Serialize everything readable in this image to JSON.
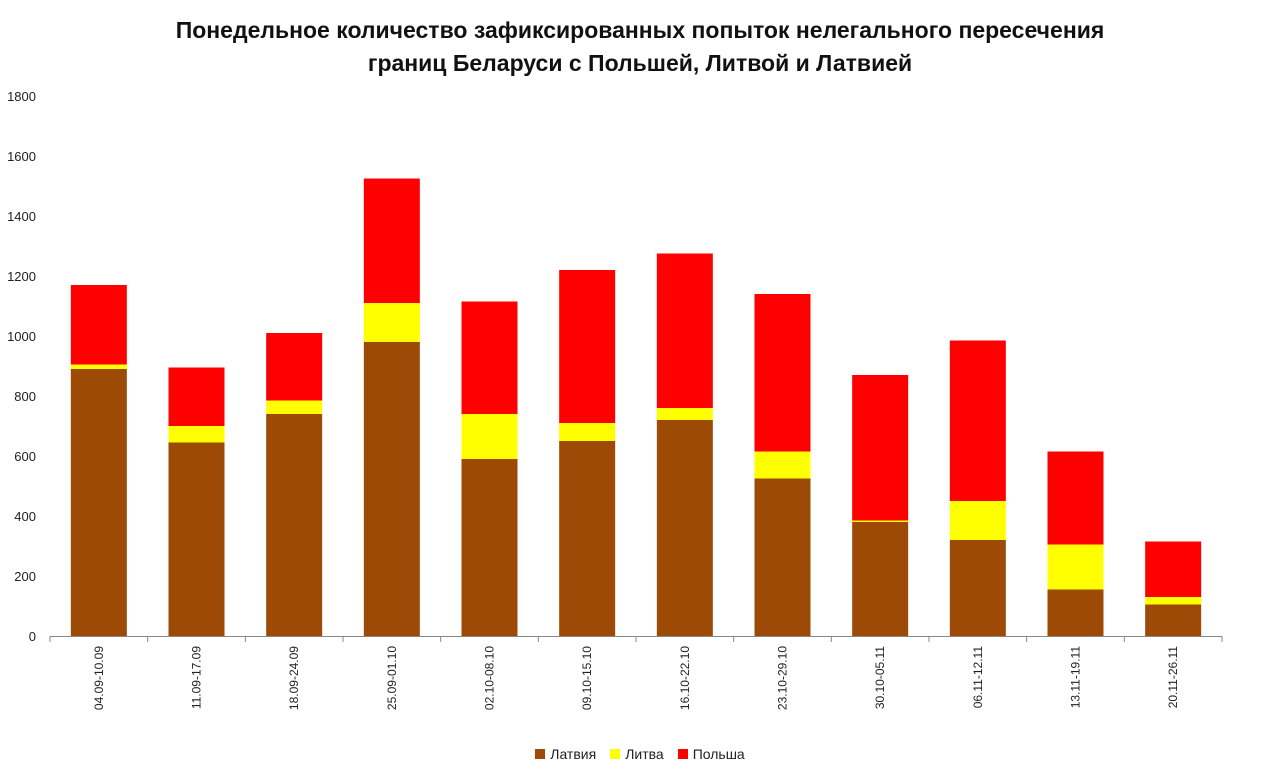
{
  "chart_data": {
    "type": "bar",
    "stacked": true,
    "title_lines": [
      "Понедельное количество зафиксированных попыток нелегального пересечения",
      "границ Беларуси с Польшей, Литвой и Латвией"
    ],
    "xlabel": "",
    "ylabel": "",
    "ylim": [
      0,
      1800
    ],
    "yticks": [
      0,
      200,
      400,
      600,
      800,
      1000,
      1200,
      1400,
      1600,
      1800
    ],
    "grid": false,
    "legend_position": "bottom",
    "categories": [
      "04.09-10.09",
      "11.09-17.09",
      "18.09-24.09",
      "25.09-01.10",
      "02.10-08.10",
      "09.10-15.10",
      "16.10-22.10",
      "23.10-29.10",
      "30.10-05.11",
      "06.11-12.11",
      "13.11-19.11",
      "20.11-26.11"
    ],
    "series": [
      {
        "name": "Латвия",
        "color": "#9c4a06",
        "values": [
          890,
          645,
          740,
          980,
          590,
          650,
          720,
          525,
          380,
          320,
          155,
          105
        ]
      },
      {
        "name": "Литва",
        "color": "#ffff00",
        "values": [
          15,
          55,
          45,
          130,
          150,
          60,
          40,
          90,
          5,
          130,
          150,
          25
        ]
      },
      {
        "name": "Польша",
        "color": "#ff0000",
        "values": [
          265,
          195,
          225,
          415,
          375,
          510,
          515,
          525,
          485,
          535,
          310,
          185
        ]
      }
    ]
  }
}
